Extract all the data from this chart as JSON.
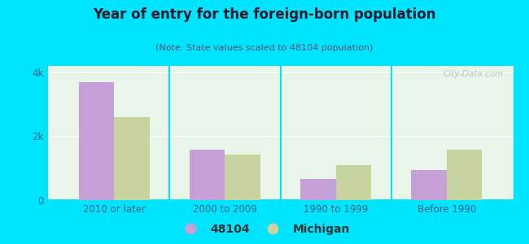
{
  "title": "Year of entry for the foreign-born population",
  "subtitle": "(Note: State values scaled to 48104 population)",
  "categories": [
    "2010 or later",
    "2000 to 2009",
    "1990 to 1999",
    "Before 1990"
  ],
  "values_48104": [
    3700,
    1580,
    650,
    950
  ],
  "values_michigan": [
    2600,
    1430,
    1100,
    1580
  ],
  "bar_color_48104": "#c8a0d8",
  "bar_color_michigan": "#c8d4a0",
  "background_color": "#00e5ff",
  "plot_bg_color": "#e8f5e8",
  "ylim": [
    0,
    4200
  ],
  "yticks": [
    0,
    2000,
    4000
  ],
  "ytick_labels": [
    "0",
    "2k",
    "4k"
  ],
  "legend_labels": [
    "48104",
    "Michigan"
  ],
  "bar_width": 0.32,
  "title_color": "#1a1a2e",
  "subtitle_color": "#555577",
  "tick_color": "#336688",
  "watermark": "City-Data.com"
}
